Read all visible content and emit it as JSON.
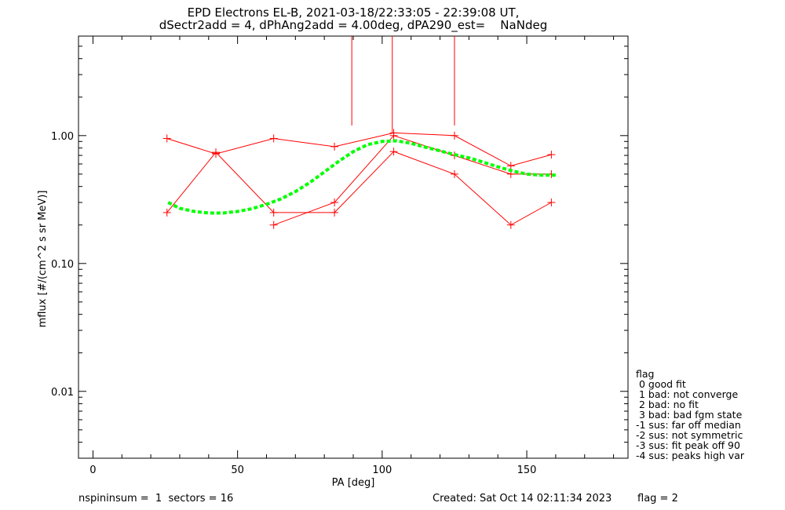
{
  "header": {
    "title_line1": "EPD Electrons EL-B, 2021-03-18/22:33:05 - 22:39:08 UT,",
    "title_line2": "dSectr2add = 4, dPhAng2add = 4.00deg, dPA290_est=    NaNdeg"
  },
  "legend": {
    "title": "flag",
    "items": [
      " 0 good fit",
      " 1 bad: not converge",
      " 2 bad: no fit",
      " 3 bad: bad fgm state",
      "-1 sus: far off median",
      "-2 sus: not symmetric",
      "-3 sus: fit peak off 90",
      "-4 sus: peaks high var"
    ]
  },
  "footer": {
    "left": "nspininsum =  1  sectors = 16",
    "created": "Created: Sat Oct 14 02:11:34 2023",
    "flag": "flag = 2"
  },
  "colors": {
    "data": "#ff0000",
    "fit": "#00ff00",
    "axes": "#000000"
  },
  "chart_data": {
    "type": "line",
    "title": "EPD Electrons EL-B, 2021-03-18/22:33:05 - 22:39:08 UT,",
    "xlabel": "PA [deg]",
    "ylabel": "mflux [#/(cm^2 s sr MeV)]",
    "xlim": [
      -5,
      185
    ],
    "ylim": [
      0.003,
      6
    ],
    "y_scale": "log",
    "xticks": [
      0,
      50,
      100,
      150
    ],
    "xtick_labels": [
      "0",
      "50",
      "100",
      "150"
    ],
    "yticks": [
      0.01,
      0.1,
      1.0
    ],
    "ytick_labels": [
      "0.01",
      "0.10",
      "1.00"
    ],
    "series": [
      {
        "x": [
          25.6,
          42.5,
          62.5,
          83.5,
          104.0,
          125.0,
          144.5,
          158.5
        ],
        "values": [
          0.95,
          0.72,
          0.95,
          0.82,
          1.05,
          1.0,
          0.58,
          0.71
        ]
      },
      {
        "x": [
          25.6,
          42.5,
          62.5,
          83.5,
          104.0,
          125.0,
          144.5,
          158.5
        ],
        "values": [
          0.25,
          0.74,
          0.25,
          0.25,
          0.75,
          0.5,
          0.2,
          0.3
        ]
      },
      {
        "x": [
          62.5,
          83.5,
          104.0,
          125.0,
          144.5,
          158.5
        ],
        "values": [
          0.2,
          0.3,
          1.0,
          0.7,
          0.5,
          0.5
        ]
      }
    ],
    "fit_curve": {
      "x": [
        26,
        30,
        35,
        40,
        45,
        50,
        55,
        60,
        65,
        70,
        75,
        80,
        85,
        90,
        95,
        100,
        105,
        110,
        115,
        120,
        125,
        130,
        135,
        140,
        145,
        150,
        155,
        160
      ],
      "values": [
        0.3,
        0.27,
        0.255,
        0.248,
        0.248,
        0.255,
        0.268,
        0.29,
        0.32,
        0.365,
        0.43,
        0.52,
        0.63,
        0.75,
        0.85,
        0.9,
        0.91,
        0.87,
        0.81,
        0.76,
        0.71,
        0.67,
        0.62,
        0.57,
        0.53,
        0.5,
        0.49,
        0.49
      ]
    },
    "vertical_markers": [
      {
        "x": 89.5,
        "top_value": 6,
        "bottom_value": 1.2
      },
      {
        "x": 103.5,
        "top_value": 6,
        "bottom_value": 1.05
      },
      {
        "x": 125.0,
        "top_value": 6,
        "bottom_value": 1.2
      }
    ]
  }
}
